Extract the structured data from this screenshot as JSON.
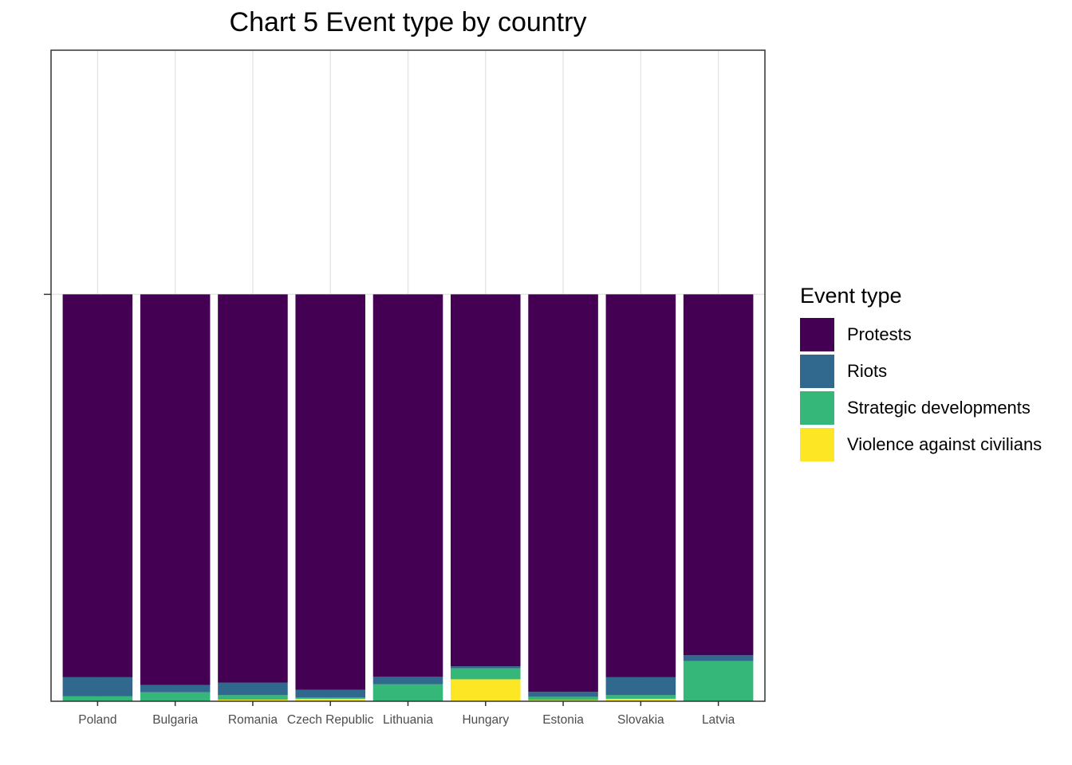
{
  "chart_data": {
    "type": "bar",
    "stacked": true,
    "title": "Chart 5 Event type by country",
    "xlabel": "",
    "ylabel": "",
    "ylim": [
      0,
      1.6
    ],
    "grid": true,
    "legend_position": "right",
    "legend_title": "Event type",
    "categories": [
      "Poland",
      "Bulgaria",
      "Romania",
      "Czech Republic",
      "Lithuania",
      "Hungary",
      "Estonia",
      "Slovakia",
      "Latvia"
    ],
    "series": [
      {
        "name": "Violence against civilians",
        "color": "#FDE725",
        "values": [
          0.0,
          0.0,
          0.004,
          0.006,
          0.0,
          0.054,
          0.003,
          0.006,
          0.0
        ]
      },
      {
        "name": "Strategic developments",
        "color": "#35B779",
        "values": [
          0.012,
          0.022,
          0.011,
          0.003,
          0.042,
          0.027,
          0.008,
          0.009,
          0.099
        ]
      },
      {
        "name": "Riots",
        "color": "#31688E",
        "values": [
          0.047,
          0.018,
          0.031,
          0.019,
          0.018,
          0.005,
          0.012,
          0.044,
          0.014
        ]
      },
      {
        "name": "Protests",
        "color": "#440154",
        "values": [
          0.941,
          0.96,
          0.954,
          0.972,
          0.94,
          0.914,
          0.977,
          0.941,
          0.887
        ]
      }
    ],
    "legend_order": [
      "Protests",
      "Riots",
      "Strategic developments",
      "Violence against civilians"
    ]
  }
}
